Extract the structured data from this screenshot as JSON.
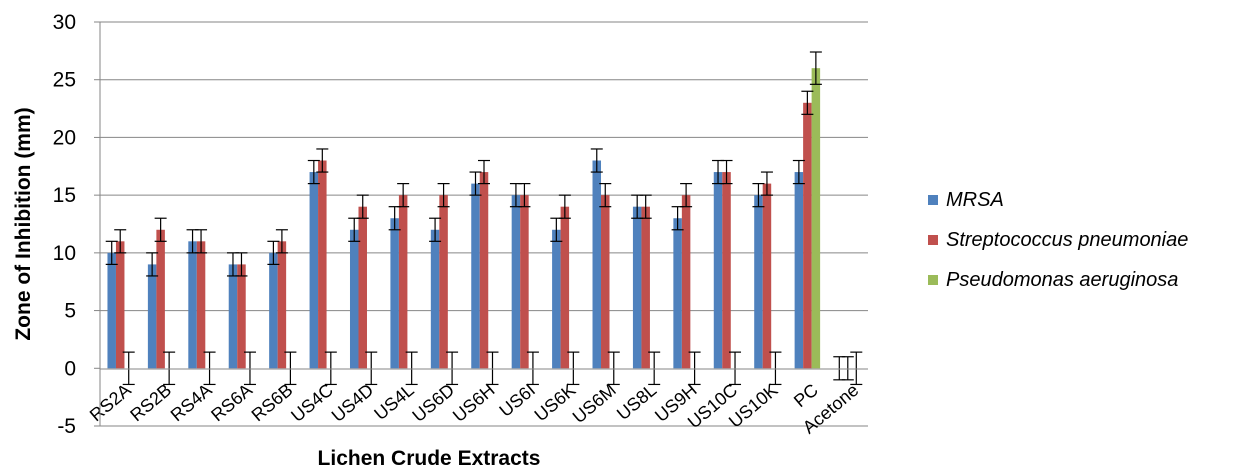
{
  "chart_data": {
    "type": "bar",
    "title": "",
    "xlabel": "Lichen Crude Extracts",
    "ylabel": "Zone of Inhibition (mm)",
    "ylim": [
      -5,
      30
    ],
    "yticks": [
      -5,
      0,
      5,
      10,
      15,
      20,
      25,
      30
    ],
    "grid": "horizontal",
    "legend_position": "right",
    "categories": [
      "RS2A",
      "RS2B",
      "RS4A",
      "RS6A",
      "RS6B",
      "US4C",
      "US4D",
      "US4L",
      "US6D",
      "US6H",
      "US6I",
      "US6K",
      "US6M",
      "US8L",
      "US9H",
      "US10C",
      "US10K",
      "PC",
      "Acetone"
    ],
    "series": [
      {
        "name": "MRSA",
        "color": "#4f81bd",
        "values": [
          10,
          9,
          11,
          9,
          10,
          17,
          12,
          13,
          12,
          16,
          15,
          12,
          18,
          14,
          13,
          17,
          15,
          17,
          0
        ],
        "error": [
          1,
          1,
          1,
          1,
          1,
          1,
          1,
          1,
          1,
          1,
          1,
          1,
          1,
          1,
          1,
          1,
          1,
          1,
          1
        ]
      },
      {
        "name": "Streptococcus pneumoniae",
        "color": "#c0504d",
        "values": [
          11,
          12,
          11,
          9,
          11,
          18,
          14,
          15,
          15,
          17,
          15,
          14,
          15,
          14,
          15,
          17,
          16,
          23,
          0
        ],
        "error": [
          1,
          1,
          1,
          1,
          1,
          1,
          1,
          1,
          1,
          1,
          1,
          1,
          1,
          1,
          1,
          1,
          1,
          1,
          1
        ]
      },
      {
        "name": "Pseudomonas aeruginosa",
        "color": "#9bbb59",
        "values": [
          0,
          0,
          0,
          0,
          0,
          0,
          0,
          0,
          0,
          0,
          0,
          0,
          0,
          0,
          0,
          0,
          0,
          26,
          0
        ],
        "error": [
          1.4,
          1.4,
          1.4,
          1.4,
          1.4,
          1.4,
          1.4,
          1.4,
          1.4,
          1.4,
          1.4,
          1.4,
          1.4,
          1.4,
          1.4,
          1.4,
          1.4,
          1.4,
          1.4
        ]
      }
    ]
  }
}
